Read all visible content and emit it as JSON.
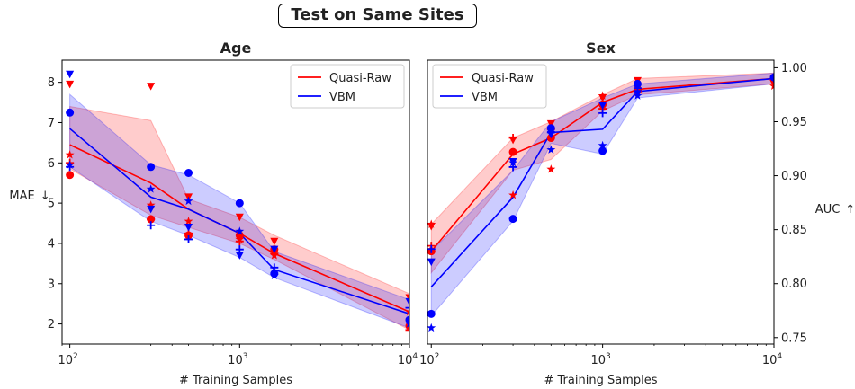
{
  "figure": {
    "suptitle": "Test on Same Sites"
  },
  "colors": {
    "quasi_raw": "#ff0000",
    "vbm": "#0000ff"
  },
  "chart_data": [
    {
      "type": "line",
      "title": "Age",
      "xlabel": "# Training Samples",
      "ylabel": "MAE",
      "ylabel_arrow": "↓",
      "x_scale": "log",
      "xlim": [
        90,
        10000
      ],
      "ylim": [
        1.5,
        8.55
      ],
      "x_ticks": [
        {
          "value": 100,
          "base": "10",
          "exp": "2"
        },
        {
          "value": 1000,
          "base": "10",
          "exp": "3"
        },
        {
          "value": 10000,
          "base": "10",
          "exp": "4"
        }
      ],
      "y_ticks": [
        {
          "value": 2,
          "label": "2"
        },
        {
          "value": 3,
          "label": "3"
        },
        {
          "value": 4,
          "label": "4"
        },
        {
          "value": 5,
          "label": "5"
        },
        {
          "value": 6,
          "label": "6"
        },
        {
          "value": 7,
          "label": "7"
        },
        {
          "value": 8,
          "label": "8"
        }
      ],
      "y_axis_side": "left",
      "legend": {
        "position": "top-right",
        "entries": [
          "Quasi-Raw",
          "VBM"
        ]
      },
      "series": [
        {
          "name": "Quasi-Raw",
          "color": "#ff0000",
          "x": [
            100,
            300,
            500,
            1000,
            1600,
            10000
          ],
          "mean": [
            6.45,
            5.5,
            4.85,
            4.25,
            3.75,
            2.3
          ],
          "band_low": [
            5.85,
            4.7,
            4.4,
            4.0,
            3.6,
            1.85
          ],
          "band_high": [
            7.4,
            7.05,
            5.1,
            4.65,
            4.2,
            2.75
          ],
          "points": [
            {
              "marker": "circle",
              "x": [
                100,
                300,
                500,
                1000,
                1600,
                10000
              ],
              "y": [
                5.7,
                4.6,
                4.2,
                4.2,
                3.85,
                1.95
              ]
            },
            {
              "marker": "triangle-down",
              "x": [
                100,
                300,
                500,
                1000,
                1600,
                10000
              ],
              "y": [
                7.95,
                7.9,
                5.15,
                4.65,
                4.05,
                2.65
              ]
            },
            {
              "marker": "star",
              "x": [
                100,
                300,
                500,
                1000,
                1600,
                10000
              ],
              "y": [
                6.2,
                4.95,
                4.55,
                4.1,
                3.7,
                2.3
              ]
            },
            {
              "marker": "plus",
              "x": [
                100,
                300,
                500,
                1000,
                1600,
                10000
              ],
              "y": [
                6.0,
                4.6,
                4.25,
                4.05,
                3.75,
                1.85
              ]
            }
          ]
        },
        {
          "name": "VBM",
          "color": "#0000ff",
          "x": [
            100,
            300,
            500,
            1000,
            1600,
            10000
          ],
          "mean": [
            6.85,
            5.15,
            4.85,
            4.25,
            3.35,
            2.25
          ],
          "band_low": [
            5.9,
            4.55,
            4.2,
            3.65,
            3.15,
            1.9
          ],
          "band_high": [
            7.7,
            5.95,
            5.7,
            5.0,
            3.8,
            2.6
          ],
          "points": [
            {
              "marker": "circle",
              "x": [
                100,
                300,
                500,
                1000,
                1600,
                10000
              ],
              "y": [
                7.25,
                5.9,
                5.75,
                5.0,
                3.25,
                2.1
              ]
            },
            {
              "marker": "triangle-down",
              "x": [
                100,
                300,
                500,
                1000,
                1600,
                10000
              ],
              "y": [
                8.2,
                4.85,
                4.4,
                3.7,
                3.85,
                2.55
              ]
            },
            {
              "marker": "star",
              "x": [
                100,
                300,
                500,
                1000,
                1600,
                10000
              ],
              "y": [
                5.95,
                5.35,
                5.05,
                4.3,
                3.2,
                2.0
              ]
            },
            {
              "marker": "plus",
              "x": [
                100,
                300,
                500,
                1000,
                1600,
                10000
              ],
              "y": [
                5.9,
                4.45,
                4.1,
                3.85,
                3.4,
                2.4
              ]
            }
          ]
        }
      ]
    },
    {
      "type": "line",
      "title": "Sex",
      "xlabel": "# Training Samples",
      "ylabel": "AUC",
      "ylabel_arrow": "↑",
      "x_scale": "log",
      "xlim": [
        95,
        10000
      ],
      "ylim": [
        0.744,
        1.007
      ],
      "x_ticks": [
        {
          "value": 100,
          "base": "10",
          "exp": "2"
        },
        {
          "value": 1000,
          "base": "10",
          "exp": "3"
        },
        {
          "value": 10000,
          "base": "10",
          "exp": "4"
        }
      ],
      "y_ticks": [
        {
          "value": 0.75,
          "label": "0.75"
        },
        {
          "value": 0.8,
          "label": "0.80"
        },
        {
          "value": 0.85,
          "label": "0.85"
        },
        {
          "value": 0.9,
          "label": "0.90"
        },
        {
          "value": 0.95,
          "label": "0.95"
        },
        {
          "value": 1.0,
          "label": "1.00"
        }
      ],
      "y_axis_side": "right",
      "legend": {
        "position": "top-left",
        "entries": [
          "Quasi-Raw",
          "VBM"
        ]
      },
      "series": [
        {
          "name": "Quasi-Raw",
          "color": "#ff0000",
          "x": [
            100,
            300,
            500,
            1000,
            1600,
            10000
          ],
          "mean": [
            0.83,
            0.92,
            0.935,
            0.968,
            0.98,
            0.99
          ],
          "band_low": [
            0.81,
            0.905,
            0.915,
            0.96,
            0.975,
            0.985
          ],
          "band_high": [
            0.855,
            0.935,
            0.95,
            0.975,
            0.99,
            0.995
          ],
          "points": [
            {
              "marker": "circle",
              "x": [
                100,
                300,
                500,
                1000,
                1600,
                10000
              ],
              "y": [
                0.83,
                0.922,
                0.935,
                0.966,
                0.98,
                0.991
              ]
            },
            {
              "marker": "triangle-down",
              "x": [
                100,
                300,
                500,
                1000,
                1600,
                10000
              ],
              "y": [
                0.853,
                0.933,
                0.948,
                0.972,
                0.988,
                0.985
              ]
            },
            {
              "marker": "star",
              "x": [
                100,
                300,
                500,
                1000,
                1600,
                10000
              ],
              "y": [
                0.855,
                0.882,
                0.906,
                0.974,
                0.978,
                0.983
              ]
            },
            {
              "marker": "plus",
              "x": [
                100,
                300,
                500,
                1000,
                1600,
                10000
              ],
              "y": [
                0.835,
                0.935,
                0.943,
                0.962,
                0.978,
                0.989
              ]
            }
          ]
        },
        {
          "name": "VBM",
          "color": "#0000ff",
          "x": [
            100,
            300,
            500,
            1000,
            1600,
            10000
          ],
          "mean": [
            0.797,
            0.88,
            0.94,
            0.943,
            0.978,
            0.99
          ],
          "band_low": [
            0.77,
            0.858,
            0.93,
            0.92,
            0.972,
            0.985
          ],
          "band_high": [
            0.83,
            0.905,
            0.95,
            0.972,
            0.985,
            0.995
          ],
          "points": [
            {
              "marker": "circle",
              "x": [
                100,
                300,
                500,
                1000,
                1600,
                10000
              ],
              "y": [
                0.772,
                0.86,
                0.944,
                0.923,
                0.985,
                0.991
              ]
            },
            {
              "marker": "triangle-down",
              "x": [
                100,
                300,
                500,
                1000,
                1600,
                10000
              ],
              "y": [
                0.82,
                0.913,
                0.938,
                0.965,
                0.976,
                0.99
              ]
            },
            {
              "marker": "star",
              "x": [
                100,
                300,
                500,
                1000,
                1600,
                10000
              ],
              "y": [
                0.759,
                0.912,
                0.924,
                0.928,
                0.974,
                0.992
              ]
            },
            {
              "marker": "plus",
              "x": [
                100,
                300,
                500,
                1000,
                1600,
                10000
              ],
              "y": [
                0.832,
                0.908,
                0.94,
                0.958,
                0.981,
                0.99
              ]
            }
          ]
        }
      ]
    }
  ]
}
